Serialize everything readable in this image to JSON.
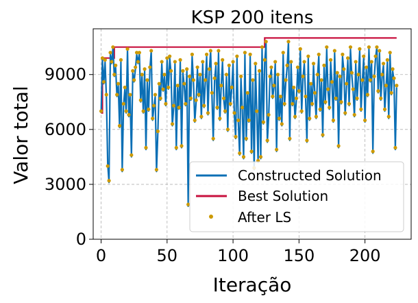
{
  "chart_data": {
    "type": "line",
    "title": "KSP 200 itens",
    "xlabel": "Iteração",
    "ylabel": "Valor total",
    "xlim": [
      -6,
      235
    ],
    "ylim": [
      0,
      11500
    ],
    "xticks": [
      0,
      50,
      100,
      150,
      200
    ],
    "yticks": [
      0,
      3000,
      6000,
      9000
    ],
    "grid": true,
    "legend_position": "lower-right",
    "colors": {
      "constructed": "#0b6fb5",
      "best": "#c8103e",
      "after_ls": "#cc9900"
    },
    "series": [
      {
        "name": "Constructed Solution",
        "x": [
          0,
          1,
          2,
          3,
          4,
          5,
          6,
          7,
          8,
          9,
          10,
          11,
          12,
          13,
          14,
          15,
          16,
          17,
          18,
          19,
          20,
          21,
          22,
          23,
          24,
          25,
          26,
          27,
          28,
          29,
          30,
          31,
          32,
          33,
          34,
          35,
          36,
          37,
          38,
          39,
          40,
          41,
          42,
          43,
          44,
          45,
          46,
          47,
          48,
          49,
          50,
          51,
          52,
          53,
          54,
          55,
          56,
          57,
          58,
          59,
          60,
          61,
          62,
          63,
          64,
          65,
          66,
          67,
          68,
          69,
          70,
          71,
          72,
          73,
          74,
          75,
          76,
          77,
          78,
          79,
          80,
          81,
          82,
          83,
          84,
          85,
          86,
          87,
          88,
          89,
          90,
          91,
          92,
          93,
          94,
          95,
          96,
          97,
          98,
          99,
          100,
          101,
          102,
          103,
          104,
          105,
          106,
          107,
          108,
          109,
          110,
          111,
          112,
          113,
          114,
          115,
          116,
          117,
          118,
          119,
          120,
          121,
          122,
          123,
          124,
          125,
          126,
          127,
          128,
          129,
          130,
          131,
          132,
          133,
          134,
          135,
          136,
          137,
          138,
          139,
          140,
          141,
          142,
          143,
          144,
          145,
          146,
          147,
          148,
          149,
          150,
          151,
          152,
          153,
          154,
          155,
          156,
          157,
          158,
          159,
          160,
          161,
          162,
          163,
          164,
          165,
          166,
          167,
          168,
          169,
          170,
          171,
          172,
          173,
          174,
          175,
          176,
          177,
          178,
          179,
          180,
          181,
          182,
          183,
          184,
          185,
          186,
          187,
          188,
          189,
          190,
          191,
          192,
          193,
          194,
          195,
          196,
          197,
          198,
          199,
          200,
          201,
          202,
          203,
          204,
          205,
          206,
          207,
          208,
          209,
          210,
          211,
          212,
          213,
          214,
          215,
          216,
          217,
          218,
          219,
          220,
          221,
          222,
          223,
          224
        ],
        "values": [
          6900,
          9800,
          8500,
          9700,
          7800,
          4100,
          3100,
          10100,
          9600,
          10500,
          8900,
          9400,
          7800,
          8400,
          6100,
          9700,
          3700,
          7300,
          8200,
          6900,
          10400,
          6700,
          7800,
          4500,
          9100,
          8600,
          9300,
          10100,
          9600,
          10200,
          7500,
          8900,
          6900,
          9200,
          4900,
          8600,
          7000,
          9300,
          10300,
          6500,
          7200,
          7800,
          3700,
          5800,
          8400,
          7600,
          9600,
          8100,
          8900,
          7300,
          9800,
          8200,
          9900,
          9100,
          6200,
          7200,
          9600,
          4900,
          8300,
          7100,
          9700,
          5000,
          9100,
          8400,
          7300,
          9200,
          1800,
          8800,
          7600,
          10000,
          8600,
          6400,
          7500,
          9300,
          7800,
          8900,
          6600,
          9600,
          7200,
          8600,
          10000,
          6800,
          9200,
          10300,
          7900,
          5400,
          8700,
          9500,
          7100,
          10200,
          6500,
          8300,
          9700,
          7600,
          6900,
          8900,
          5900,
          9400,
          7300,
          8200,
          9600,
          6800,
          5500,
          9900,
          6400,
          4600,
          8800,
          7100,
          4400,
          10100,
          5400,
          7900,
          6400,
          10000,
          4700,
          8600,
          3800,
          9500,
          6900,
          4200,
          9100,
          4400,
          10500,
          6300,
          9700,
          10700,
          5300,
          6700,
          8800,
          9300,
          7700,
          8300,
          9600,
          4800,
          8900,
          6500,
          7700,
          6200,
          10100,
          7300,
          8600,
          9400,
          10800,
          5400,
          9600,
          7300,
          8200,
          6600,
          7600,
          9300,
          8000,
          10300,
          6900,
          8800,
          9600,
          7700,
          5300,
          9900,
          6500,
          8400,
          7300,
          9500,
          7900,
          6600,
          8900,
          10000,
          7000,
          8600,
          5600,
          9400,
          7400,
          10400,
          8100,
          7100,
          9700,
          8500,
          6400,
          10200,
          7600,
          9000,
          5000,
          8800,
          7400,
          10000,
          9200,
          6800,
          8400,
          9800,
          7300,
          10400,
          9000,
          8100,
          6700,
          9600,
          7600,
          8900,
          10300,
          7000,
          8600,
          9900,
          6400,
          9300,
          7800,
          10400,
          8600,
          9600,
          4700,
          8800,
          9900,
          10500,
          8000,
          10200,
          7600,
          8900,
          9500,
          7000,
          8300,
          9700,
          6600,
          10100,
          7900,
          9200,
          8700,
          4900,
          8300
        ]
      },
      {
        "name": "Best Solution",
        "x": [
          0,
          1,
          1,
          10,
          10,
          124,
          124,
          224
        ],
        "values": [
          6900,
          6900,
          9900,
          9900,
          10500,
          10500,
          11000,
          11000
        ]
      },
      {
        "name": "After LS",
        "x": [
          0,
          1,
          2,
          3,
          4,
          5,
          6,
          7,
          8,
          9,
          10,
          11,
          12,
          13,
          14,
          15,
          16,
          17,
          18,
          19,
          20,
          21,
          22,
          23,
          24,
          25,
          26,
          27,
          28,
          29,
          30,
          31,
          32,
          33,
          34,
          35,
          36,
          37,
          38,
          39,
          40,
          41,
          42,
          43,
          44,
          45,
          46,
          47,
          48,
          49,
          50,
          51,
          52,
          53,
          54,
          55,
          56,
          57,
          58,
          59,
          60,
          61,
          62,
          63,
          64,
          65,
          66,
          67,
          68,
          69,
          70,
          71,
          72,
          73,
          74,
          75,
          76,
          77,
          78,
          79,
          80,
          81,
          82,
          83,
          84,
          85,
          86,
          87,
          88,
          89,
          90,
          91,
          92,
          93,
          94,
          95,
          96,
          97,
          98,
          99,
          100,
          101,
          102,
          103,
          104,
          105,
          106,
          107,
          108,
          109,
          110,
          111,
          112,
          113,
          114,
          115,
          116,
          117,
          118,
          119,
          120,
          121,
          122,
          123,
          124,
          125,
          126,
          127,
          128,
          129,
          130,
          131,
          132,
          133,
          134,
          135,
          136,
          137,
          138,
          139,
          140,
          141,
          142,
          143,
          144,
          145,
          146,
          147,
          148,
          149,
          150,
          151,
          152,
          153,
          154,
          155,
          156,
          157,
          158,
          159,
          160,
          161,
          162,
          163,
          164,
          165,
          166,
          167,
          168,
          169,
          170,
          171,
          172,
          173,
          174,
          175,
          176,
          177,
          178,
          179,
          180,
          181,
          182,
          183,
          184,
          185,
          186,
          187,
          188,
          189,
          190,
          191,
          192,
          193,
          194,
          195,
          196,
          197,
          198,
          199,
          200,
          201,
          202,
          203,
          204,
          205,
          206,
          207,
          208,
          209,
          210,
          211,
          212,
          213,
          214,
          215,
          216,
          217,
          218,
          219,
          220,
          221,
          222,
          223,
          224
        ],
        "values": [
          7000,
          9900,
          8600,
          9800,
          7900,
          4000,
          3200,
          10200,
          9700,
          10500,
          9000,
          9500,
          7900,
          8500,
          6200,
          9800,
          3800,
          7400,
          8300,
          7000,
          10400,
          6800,
          7900,
          4600,
          9200,
          8700,
          9400,
          10200,
          9700,
          10200,
          7600,
          9000,
          7000,
          9300,
          5000,
          8700,
          7100,
          9400,
          10300,
          6600,
          7300,
          7900,
          3800,
          5900,
          8500,
          7700,
          9700,
          8200,
          9000,
          7400,
          9900,
          8300,
          10000,
          9200,
          6300,
          7300,
          9700,
          5000,
          8400,
          7200,
          9800,
          5100,
          9200,
          8500,
          7400,
          9300,
          1900,
          8900,
          7700,
          10100,
          8700,
          6500,
          7600,
          9400,
          7900,
          9000,
          6700,
          9700,
          7300,
          8700,
          10100,
          6900,
          9300,
          10300,
          8000,
          5500,
          8800,
          9600,
          7200,
          10300,
          6600,
          8400,
          9800,
          7700,
          7000,
          9000,
          6000,
          9500,
          7400,
          8300,
          9700,
          6900,
          5600,
          10000,
          6500,
          4700,
          8900,
          7200,
          4500,
          10200,
          5500,
          8000,
          6500,
          10100,
          4800,
          8700,
          3900,
          9600,
          7000,
          4300,
          9200,
          4500,
          10500,
          6400,
          9800,
          10800,
          5400,
          6800,
          8900,
          9400,
          7800,
          8400,
          9700,
          4900,
          9000,
          6600,
          7800,
          6300,
          10200,
          7400,
          8700,
          9500,
          10800,
          5500,
          9700,
          7400,
          8300,
          6700,
          7700,
          9400,
          8100,
          10400,
          7000,
          8900,
          9700,
          7800,
          5400,
          10000,
          6600,
          8500,
          7400,
          9600,
          8000,
          6700,
          9000,
          10100,
          7100,
          8700,
          5700,
          9500,
          7500,
          10500,
          8200,
          7200,
          9800,
          8600,
          6500,
          10300,
          7700,
          9100,
          5100,
          8900,
          7500,
          10100,
          9300,
          6900,
          8500,
          9900,
          7400,
          10500,
          9100,
          8200,
          6800,
          9700,
          7700,
          9000,
          10400,
          7100,
          8700,
          10000,
          6500,
          9400,
          7900,
          10500,
          8700,
          9700,
          4800,
          8900,
          10000,
          10500,
          8100,
          10300,
          7700,
          9000,
          9600,
          7100,
          8400,
          9800,
          6700,
          10200,
          8000,
          9300,
          8800,
          5000,
          8400
        ]
      }
    ]
  }
}
